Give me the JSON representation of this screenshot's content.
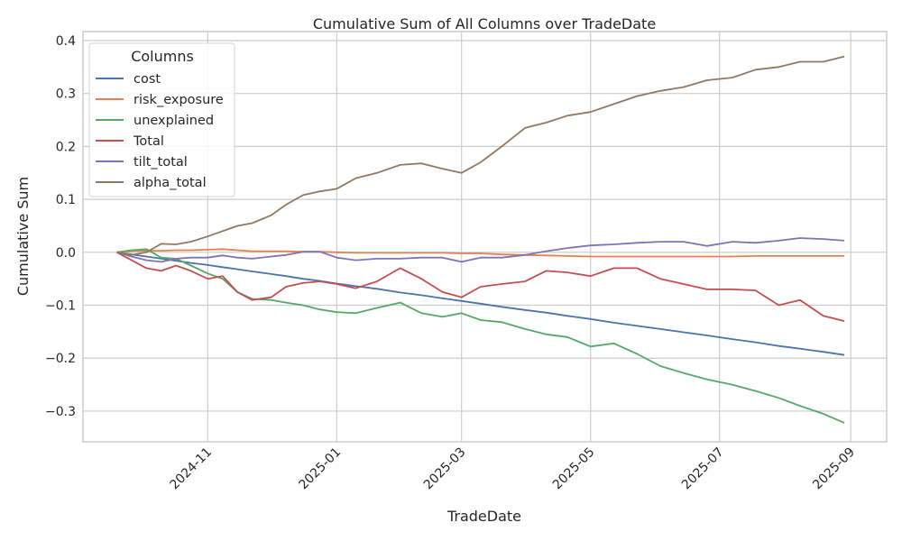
{
  "chart_data": {
    "type": "line",
    "title": "Cumulative Sum of All Columns over TradeDate",
    "xlabel": "TradeDate",
    "ylabel": "Cumulative Sum",
    "xlim": [
      "2024-09-03",
      "2025-09-18"
    ],
    "ylim": [
      -0.358,
      0.417
    ],
    "grid": true,
    "legend": {
      "title": "Columns",
      "placement": "top-left"
    },
    "x_ticks": [
      {
        "date": "2024-11-01",
        "label": "2024-11"
      },
      {
        "date": "2025-01-01",
        "label": "2025-01"
      },
      {
        "date": "2025-03-01",
        "label": "2025-03"
      },
      {
        "date": "2025-05-01",
        "label": "2025-05"
      },
      {
        "date": "2025-07-01",
        "label": "2025-07"
      },
      {
        "date": "2025-09-01",
        "label": "2025-09"
      }
    ],
    "y_ticks": [
      {
        "value": 0.4,
        "label": "0.4"
      },
      {
        "value": 0.3,
        "label": "0.3"
      },
      {
        "value": 0.2,
        "label": "0.2"
      },
      {
        "value": 0.1,
        "label": "0.1"
      },
      {
        "value": 0.0,
        "label": "0.0"
      },
      {
        "value": -0.1,
        "label": "−0.1"
      },
      {
        "value": -0.2,
        "label": "−0.2"
      },
      {
        "value": -0.3,
        "label": "−0.3"
      }
    ],
    "x": [
      "2024-09-19",
      "2024-09-26",
      "2024-10-03",
      "2024-10-10",
      "2024-10-17",
      "2024-10-24",
      "2024-11-01",
      "2024-11-08",
      "2024-11-15",
      "2024-11-22",
      "2024-12-01",
      "2024-12-08",
      "2024-12-16",
      "2024-12-24",
      "2025-01-01",
      "2025-01-10",
      "2025-01-20",
      "2025-01-31",
      "2025-02-10",
      "2025-02-20",
      "2025-03-01",
      "2025-03-10",
      "2025-03-20",
      "2025-03-31",
      "2025-04-10",
      "2025-04-20",
      "2025-05-01",
      "2025-05-12",
      "2025-05-23",
      "2025-06-03",
      "2025-06-14",
      "2025-06-25",
      "2025-07-07",
      "2025-07-18",
      "2025-07-29",
      "2025-08-08",
      "2025-08-19",
      "2025-08-29"
    ],
    "series": [
      {
        "name": "cost",
        "color": "#4c72b0",
        "values": [
          0,
          -0.004,
          -0.008,
          -0.012,
          -0.016,
          -0.02,
          -0.024,
          -0.028,
          -0.032,
          -0.036,
          -0.041,
          -0.045,
          -0.05,
          -0.054,
          -0.059,
          -0.064,
          -0.069,
          -0.076,
          -0.081,
          -0.087,
          -0.092,
          -0.097,
          -0.103,
          -0.109,
          -0.114,
          -0.12,
          -0.126,
          -0.133,
          -0.139,
          -0.145,
          -0.151,
          -0.157,
          -0.164,
          -0.17,
          -0.177,
          -0.182,
          -0.188,
          -0.194
        ]
      },
      {
        "name": "risk_exposure",
        "color": "#dd8452",
        "values": [
          0,
          0.002,
          0.003,
          0.003,
          0.004,
          0.004,
          0.005,
          0.006,
          0.004,
          0.002,
          0.002,
          0.002,
          0.001,
          0.001,
          0.0,
          -0.001,
          -0.001,
          -0.001,
          -0.001,
          -0.001,
          -0.002,
          -0.002,
          -0.004,
          -0.005,
          -0.006,
          -0.007,
          -0.008,
          -0.008,
          -0.008,
          -0.008,
          -0.008,
          -0.008,
          -0.008,
          -0.007,
          -0.007,
          -0.007,
          -0.007,
          -0.007
        ]
      },
      {
        "name": "unexplained",
        "color": "#55a868",
        "values": [
          0,
          0.004,
          0.006,
          -0.01,
          -0.012,
          -0.025,
          -0.04,
          -0.05,
          -0.075,
          -0.088,
          -0.09,
          -0.095,
          -0.1,
          -0.108,
          -0.113,
          -0.115,
          -0.105,
          -0.095,
          -0.115,
          -0.122,
          -0.115,
          -0.128,
          -0.132,
          -0.145,
          -0.155,
          -0.16,
          -0.178,
          -0.172,
          -0.192,
          -0.215,
          -0.228,
          -0.24,
          -0.25,
          -0.262,
          -0.275,
          -0.29,
          -0.305,
          -0.322
        ]
      },
      {
        "name": "Total",
        "color": "#c44e52",
        "values": [
          0,
          -0.015,
          -0.03,
          -0.035,
          -0.025,
          -0.035,
          -0.05,
          -0.045,
          -0.075,
          -0.09,
          -0.085,
          -0.065,
          -0.058,
          -0.055,
          -0.06,
          -0.068,
          -0.055,
          -0.03,
          -0.05,
          -0.075,
          -0.085,
          -0.065,
          -0.06,
          -0.055,
          -0.035,
          -0.038,
          -0.045,
          -0.03,
          -0.03,
          -0.05,
          -0.06,
          -0.07,
          -0.07,
          -0.072,
          -0.1,
          -0.09,
          -0.12,
          -0.13
        ]
      },
      {
        "name": "tilt_total",
        "color": "#8172b3",
        "values": [
          0,
          -0.008,
          -0.015,
          -0.018,
          -0.012,
          -0.01,
          -0.01,
          -0.006,
          -0.01,
          -0.012,
          -0.008,
          -0.005,
          0.001,
          0.001,
          -0.01,
          -0.015,
          -0.012,
          -0.012,
          -0.01,
          -0.01,
          -0.018,
          -0.01,
          -0.01,
          -0.005,
          0.002,
          0.008,
          0.013,
          0.015,
          0.018,
          0.02,
          0.02,
          0.012,
          0.02,
          0.018,
          0.022,
          0.027,
          0.025,
          0.022
        ]
      },
      {
        "name": "alpha_total",
        "color": "#937860",
        "values": [
          0,
          -0.005,
          0.0,
          0.016,
          0.015,
          0.02,
          0.03,
          0.04,
          0.05,
          0.055,
          0.07,
          0.09,
          0.108,
          0.115,
          0.12,
          0.14,
          0.15,
          0.165,
          0.168,
          0.158,
          0.15,
          0.17,
          0.2,
          0.235,
          0.245,
          0.258,
          0.265,
          0.28,
          0.295,
          0.305,
          0.312,
          0.325,
          0.33,
          0.345,
          0.35,
          0.36,
          0.36,
          0.37
        ]
      }
    ]
  }
}
